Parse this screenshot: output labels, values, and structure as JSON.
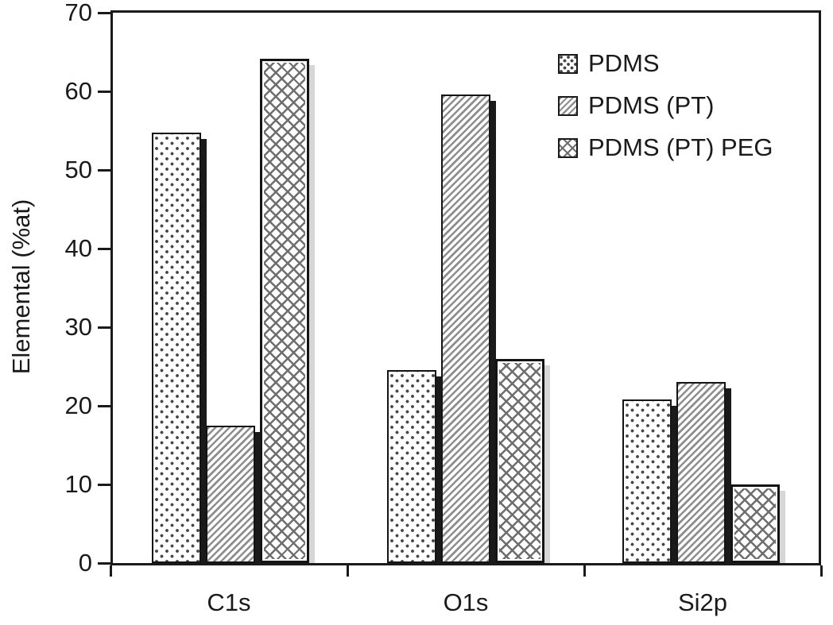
{
  "figure": {
    "background": "#ffffff",
    "ink_color": "#1a1a1a",
    "shadow_dark": "#1a1a1a",
    "shadow_light": "#d6d6d6"
  },
  "chart_data": {
    "type": "bar",
    "ylabel": "Elemental (%at)",
    "ylim": [
      0,
      70
    ],
    "yticks": [
      0,
      10,
      20,
      30,
      40,
      50,
      60,
      70
    ],
    "categories": [
      "C1s",
      "O1s",
      "Si2p"
    ],
    "series": [
      {
        "name": "PDMS",
        "pattern": "dots",
        "values": [
          54.7,
          24.5,
          20.8
        ]
      },
      {
        "name": "PDMS (PT)",
        "pattern": "diagonal",
        "values": [
          17.5,
          59.6,
          23.0
        ]
      },
      {
        "name": "PDMS (PT) PEG",
        "pattern": "crosshatch",
        "values": [
          64.1,
          26.0,
          10.0
        ]
      }
    ],
    "legend": {
      "position": "top-right",
      "entries": [
        "PDMS",
        "PDMS (PT)",
        "PDMS (PT) PEG"
      ]
    },
    "grid": false
  }
}
